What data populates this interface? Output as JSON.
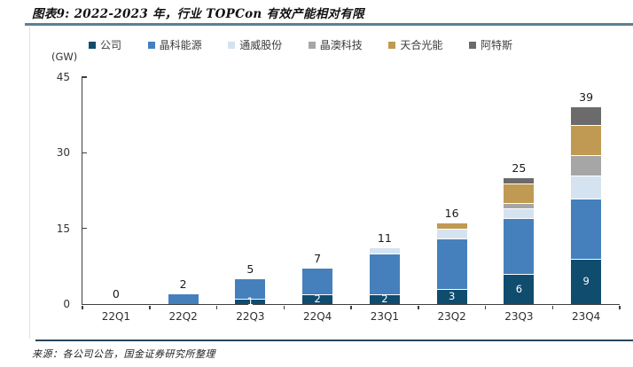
{
  "header": {
    "title": "图表9: 2022-2023 年，行业 TOPCon 有效产能相对有限"
  },
  "chart_data": {
    "type": "bar",
    "stacked": true,
    "title": "2022-2023 年，行业 TOPCon 有效产能相对有限",
    "unit_label": "(GW)",
    "categories": [
      "22Q1",
      "22Q2",
      "22Q3",
      "22Q4",
      "23Q1",
      "23Q2",
      "23Q3",
      "23Q4"
    ],
    "series": [
      {
        "name": "公司",
        "color": "#104c6e",
        "values": [
          0,
          0,
          1,
          2,
          2,
          3,
          6,
          9
        ]
      },
      {
        "name": "晶科能源",
        "color": "#4580bd",
        "values": [
          0,
          2,
          4,
          5,
          8,
          10,
          11,
          12
        ]
      },
      {
        "name": "通威股份",
        "color": "#d5e3f1",
        "values": [
          0,
          0,
          0,
          0,
          1,
          2,
          2,
          4.5
        ]
      },
      {
        "name": "晶澳科技",
        "color": "#a6a6a6",
        "values": [
          0,
          0,
          0,
          0,
          0,
          0,
          1,
          4
        ]
      },
      {
        "name": "天合光能",
        "color": "#c09a52",
        "values": [
          0,
          0,
          0,
          0,
          0,
          1,
          4,
          6
        ]
      },
      {
        "name": "阿特斯",
        "color": "#6b6b6b",
        "values": [
          0,
          0,
          0,
          0,
          0,
          0,
          1,
          3.5
        ]
      }
    ],
    "totals": [
      "0",
      "2",
      "5",
      "7",
      "11",
      "16",
      "25",
      "39"
    ],
    "first_series_labels": [
      "",
      "",
      "1",
      "2",
      "2",
      "3",
      "6",
      "9"
    ],
    "ylim": [
      0,
      45
    ],
    "yticks": [
      0,
      15,
      30,
      45
    ],
    "legend_position": "top",
    "grid": false
  },
  "footer": {
    "source": "来源：各公司公告，国金证券研究所整理"
  },
  "colors": {
    "title_rule": "#5b7f92",
    "footer_rule": "#29475c",
    "axis": "#3f3f3f"
  }
}
